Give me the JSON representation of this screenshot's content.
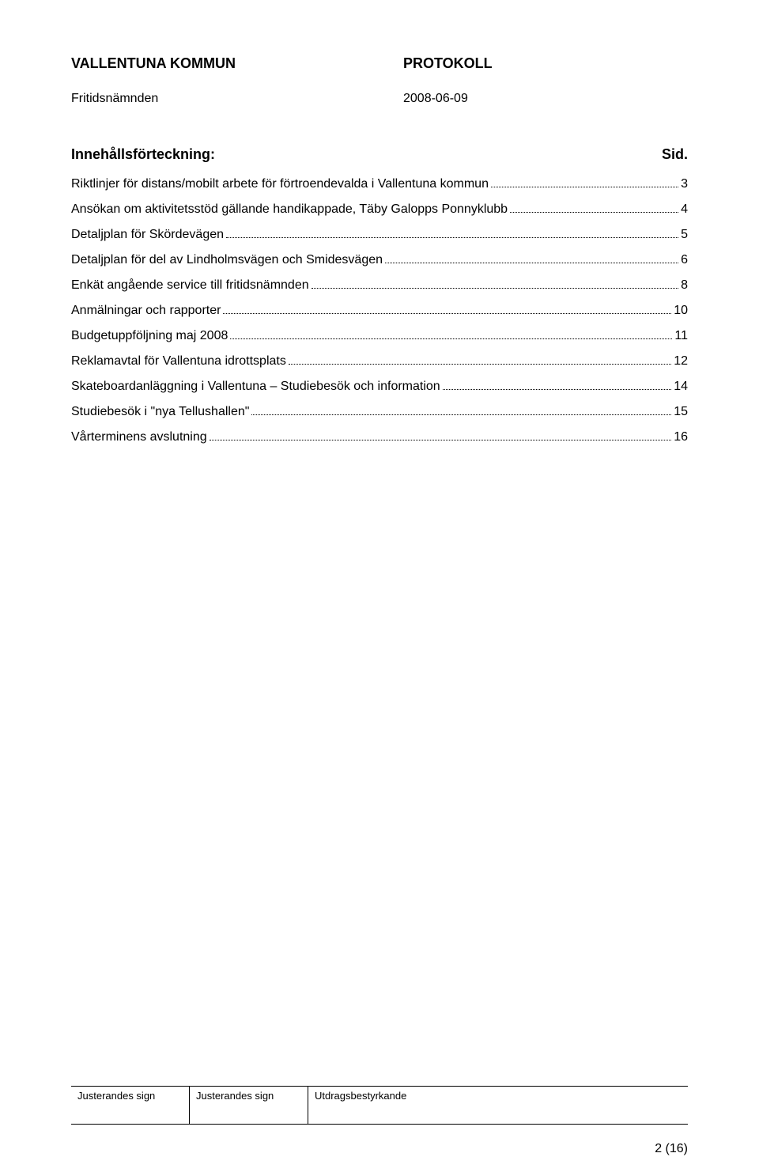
{
  "header": {
    "org": "VALLENTUNA KOMMUN",
    "docType": "PROTOKOLL",
    "committee": "Fritidsnämnden",
    "date": "2008-06-09"
  },
  "toc": {
    "title": "Innehållsförteckning:",
    "pageLabel": "Sid.",
    "items": [
      {
        "label": "Riktlinjer för distans/mobilt arbete för förtroendevalda i Vallentuna kommun",
        "page": "3"
      },
      {
        "label": "Ansökan om aktivitetsstöd gällande handikappade, Täby Galopps Ponnyklubb",
        "page": "4"
      },
      {
        "label": "Detaljplan för Skördevägen",
        "page": "5"
      },
      {
        "label": "Detaljplan för del av Lindholmsvägen och Smidesvägen",
        "page": "6"
      },
      {
        "label": "Enkät angående service till fritidsnämnden",
        "page": "8"
      },
      {
        "label": "Anmälningar och rapporter",
        "page": "10"
      },
      {
        "label": "Budgetuppföljning maj 2008",
        "page": "11"
      },
      {
        "label": "Reklamavtal för Vallentuna idrottsplats",
        "page": "12"
      },
      {
        "label": "Skateboardanläggning i Vallentuna – Studiebesök och information",
        "page": "14"
      },
      {
        "label": "Studiebesök i \"nya Tellushallen\"",
        "page": "15"
      },
      {
        "label": "Vårterminens avslutning",
        "page": "16"
      }
    ]
  },
  "footer": {
    "cells": [
      "Justerandes sign",
      "Justerandes sign",
      "Utdragsbestyrkande"
    ],
    "pageNumber": "2 (16)"
  }
}
